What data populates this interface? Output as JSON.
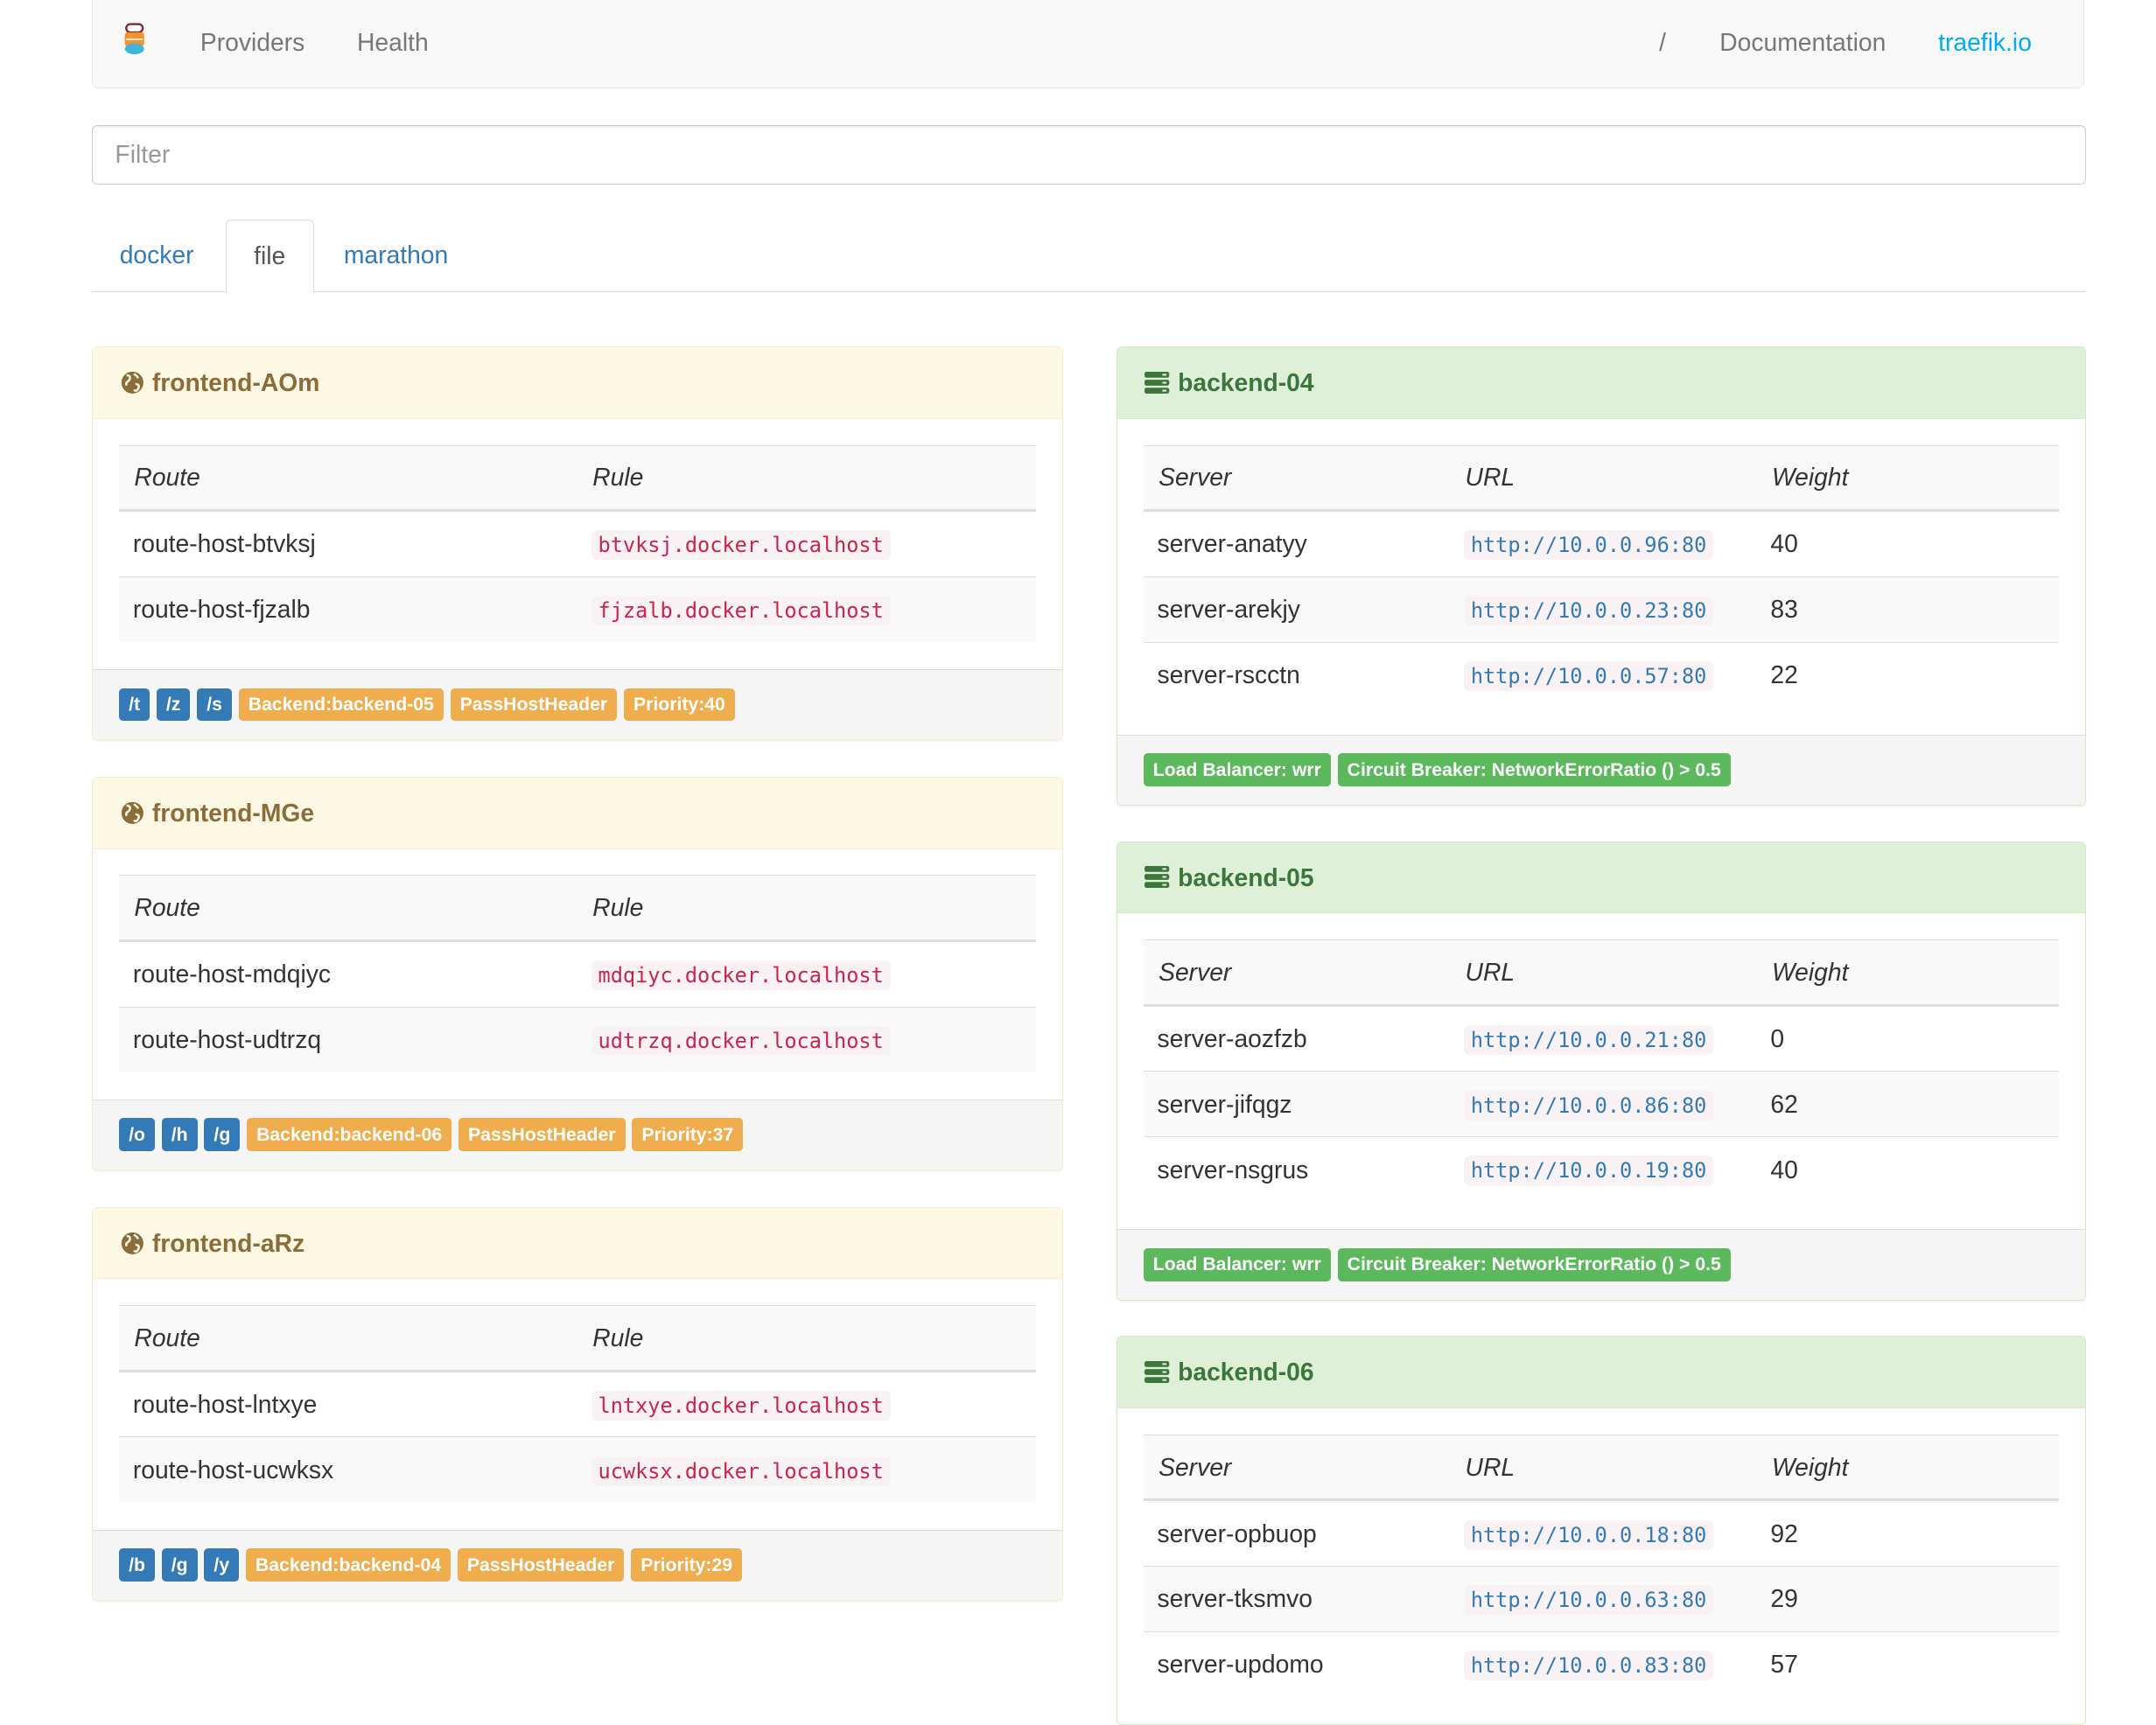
{
  "navbar": {
    "links": [
      "Providers",
      "Health"
    ],
    "separator": "/",
    "documentation": "Documentation",
    "site": "traefik.io",
    "site_color": "#00aced"
  },
  "filter": {
    "placeholder": "Filter",
    "value": ""
  },
  "tabs": [
    {
      "label": "docker",
      "active": false
    },
    {
      "label": "file",
      "active": true
    },
    {
      "label": "marathon",
      "active": false
    }
  ],
  "frontends": [
    {
      "name": "frontend-AOm",
      "headers": [
        "Route",
        "Rule"
      ],
      "routes": [
        [
          "route-host-btvksj",
          "btvksj.docker.localhost"
        ],
        [
          "route-host-fjzalb",
          "fjzalb.docker.localhost"
        ]
      ],
      "paths": [
        "/t",
        "/z",
        "/s"
      ],
      "backend": "Backend:backend-05",
      "pass": "PassHostHeader",
      "priority": "Priority:40"
    },
    {
      "name": "frontend-MGe",
      "headers": [
        "Route",
        "Rule"
      ],
      "routes": [
        [
          "route-host-mdqiyc",
          "mdqiyc.docker.localhost"
        ],
        [
          "route-host-udtrzq",
          "udtrzq.docker.localhost"
        ]
      ],
      "paths": [
        "/o",
        "/h",
        "/g"
      ],
      "backend": "Backend:backend-06",
      "pass": "PassHostHeader",
      "priority": "Priority:37"
    },
    {
      "name": "frontend-aRz",
      "headers": [
        "Route",
        "Rule"
      ],
      "routes": [
        [
          "route-host-lntxye",
          "lntxye.docker.localhost"
        ],
        [
          "route-host-ucwksx",
          "ucwksx.docker.localhost"
        ]
      ],
      "paths": [
        "/b",
        "/g",
        "/y"
      ],
      "backend": "Backend:backend-04",
      "pass": "PassHostHeader",
      "priority": "Priority:29"
    }
  ],
  "backends": [
    {
      "name": "backend-04",
      "headers": [
        "Server",
        "URL",
        "Weight"
      ],
      "servers": [
        [
          "server-anatyy",
          "http://10.0.0.96:80",
          "40"
        ],
        [
          "server-arekjy",
          "http://10.0.0.23:80",
          "83"
        ],
        [
          "server-rscctn",
          "http://10.0.0.57:80",
          "22"
        ]
      ],
      "lb": "Load Balancer: wrr",
      "cb": "Circuit Breaker: NetworkErrorRatio () > 0.5"
    },
    {
      "name": "backend-05",
      "headers": [
        "Server",
        "URL",
        "Weight"
      ],
      "servers": [
        [
          "server-aozfzb",
          "http://10.0.0.21:80",
          "0"
        ],
        [
          "server-jifqgz",
          "http://10.0.0.86:80",
          "62"
        ],
        [
          "server-nsgrus",
          "http://10.0.0.19:80",
          "40"
        ]
      ],
      "lb": "Load Balancer: wrr",
      "cb": "Circuit Breaker: NetworkErrorRatio () > 0.5"
    },
    {
      "name": "backend-06",
      "headers": [
        "Server",
        "URL",
        "Weight"
      ],
      "servers": [
        [
          "server-opbuop",
          "http://10.0.0.18:80",
          "92"
        ],
        [
          "server-tksmvo",
          "http://10.0.0.63:80",
          "29"
        ],
        [
          "server-updomo",
          "http://10.0.0.83:80",
          "57"
        ]
      ],
      "lb": "",
      "cb": ""
    }
  ]
}
